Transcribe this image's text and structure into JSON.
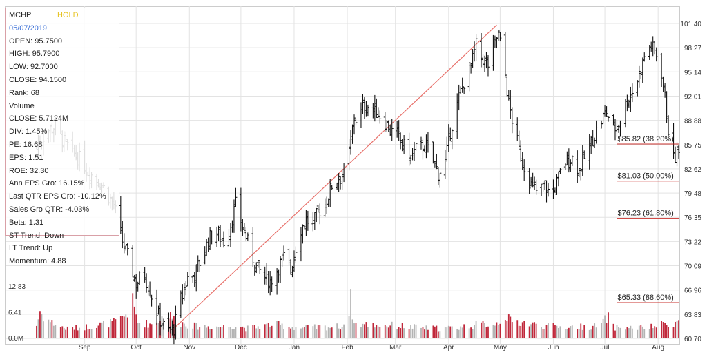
{
  "info": {
    "ticker": "MCHP",
    "rating": "HOLD",
    "date": "05/07/2019",
    "lines": [
      "OPEN: 95.7500",
      "HIGH: 95.7900",
      "LOW: 92.7000",
      "CLOSE: 94.1500",
      "Rank: 68",
      "Volume",
      "CLOSE: 5.7124M",
      "DIV: 1.45%",
      "PE: 16.68",
      "EPS: 1.51",
      "ROE: 32.30",
      "Ann EPS Gro: 16.15%",
      "Last QTR EPS Gro: -10.12%",
      "Sales Gro QTR: -4.03%",
      "Beta: 1.31",
      "ST Trend: Down",
      "LT Trend: Up",
      "Momentum: 4.88"
    ]
  },
  "chart_data": {
    "type": "ohlc",
    "x_tick_labels": [
      "Sep",
      "Oct",
      "Nov",
      "Dec",
      "Jan",
      "Feb",
      "Mar",
      "Apr",
      "May",
      "Jun",
      "Jul",
      "Aug"
    ],
    "x_tick_days": [
      0,
      30,
      61,
      91,
      122,
      153,
      181,
      212,
      242,
      273,
      303,
      334
    ],
    "y_tick_labels": [
      "101.40",
      "98.27",
      "95.14",
      "92.01",
      "88.88",
      "85.75",
      "82.62",
      "79.48",
      "76.35",
      "73.22",
      "70.09",
      "66.96",
      "63.83",
      "60.70"
    ],
    "ylim": [
      60.7,
      101.4
    ],
    "volume_tick_labels": [
      "12.83",
      "6.41",
      "0.0M"
    ],
    "volume_ylim": [
      0,
      20
    ],
    "colors": {
      "bar": "#111111",
      "trendline": "#e8706a",
      "fib": "#c9302c",
      "volume_down": "#c0283b",
      "volume_up": "#b3b3b3",
      "grid": "#e3e3e3",
      "panel_border": "#d9a0a7",
      "rating": "#e6c21f",
      "date": "#3b6fd6"
    },
    "trendline": {
      "from": {
        "day": 52,
        "price": 62.0
      },
      "to": {
        "day": 240,
        "price": 101.2
      }
    },
    "fib_levels": [
      {
        "label": "$85.82 (38.20%)",
        "value": 85.82
      },
      {
        "label": "$81.03 (50.00%)",
        "value": 81.03
      },
      {
        "label": "$76.23 (61.80%)",
        "value": 76.23
      },
      {
        "label": "$65.33 (88.60%)",
        "value": 65.33
      }
    ],
    "fib_start_day": 310,
    "fib_end_day": 349,
    "price_anchors": [
      [
        -28,
        85.5
      ],
      [
        -22,
        87.5
      ],
      [
        -17,
        88.2
      ],
      [
        -12,
        86.0
      ],
      [
        -6,
        84.5
      ],
      [
        -1,
        83.5
      ],
      [
        1,
        82.5
      ],
      [
        10,
        80.5
      ],
      [
        17,
        78.0
      ],
      [
        22,
        73.2
      ],
      [
        27,
        70.1
      ],
      [
        30,
        67.5
      ],
      [
        34,
        69.5
      ],
      [
        38,
        66.9
      ],
      [
        43,
        63.5
      ],
      [
        48,
        61.5
      ],
      [
        52,
        62.0
      ],
      [
        56,
        65.8
      ],
      [
        60,
        68.5
      ],
      [
        64,
        69.0
      ],
      [
        68,
        71.0
      ],
      [
        72,
        73.5
      ],
      [
        76,
        74.5
      ],
      [
        82,
        73.0
      ],
      [
        88,
        78.0
      ],
      [
        93,
        74.5
      ],
      [
        98,
        71.0
      ],
      [
        103,
        69.0
      ],
      [
        108,
        68.0
      ],
      [
        113,
        70.0
      ],
      [
        117,
        71.5
      ],
      [
        120,
        69.5
      ],
      [
        125,
        74.5
      ],
      [
        129,
        76.0
      ],
      [
        133,
        75.5
      ],
      [
        136,
        77.0
      ],
      [
        140,
        78.0
      ],
      [
        144,
        80.5
      ],
      [
        148,
        81.5
      ],
      [
        152,
        82.5
      ],
      [
        155,
        86.0
      ],
      [
        157,
        89.5
      ],
      [
        159,
        88.5
      ],
      [
        162,
        90.5
      ],
      [
        166,
        90.8
      ],
      [
        170,
        90.0
      ],
      [
        174,
        89.0
      ],
      [
        178,
        87.5
      ],
      [
        182,
        87.0
      ],
      [
        186,
        85.5
      ],
      [
        190,
        84.0
      ],
      [
        194,
        85.5
      ],
      [
        198,
        85.5
      ],
      [
        202,
        84.5
      ],
      [
        206,
        82.0
      ],
      [
        210,
        83.5
      ],
      [
        213,
        87.5
      ],
      [
        216,
        90.0
      ],
      [
        219,
        92.5
      ],
      [
        222,
        94.5
      ],
      [
        225,
        96.0
      ],
      [
        228,
        98.5
      ],
      [
        231,
        97.0
      ],
      [
        235,
        96.0
      ],
      [
        238,
        98.5
      ],
      [
        241,
        100.0
      ],
      [
        244,
        96.5
      ],
      [
        247,
        91.0
      ],
      [
        250,
        88.0
      ],
      [
        253,
        85.0
      ],
      [
        256,
        83.0
      ],
      [
        260,
        80.5
      ],
      [
        264,
        79.5
      ],
      [
        268,
        80.5
      ],
      [
        272,
        79.0
      ],
      [
        276,
        81.5
      ],
      [
        280,
        83.5
      ],
      [
        284,
        84.0
      ],
      [
        288,
        82.5
      ],
      [
        292,
        84.5
      ],
      [
        296,
        86.5
      ],
      [
        300,
        88.5
      ],
      [
        304,
        90.0
      ],
      [
        308,
        87.5
      ],
      [
        312,
        89.0
      ],
      [
        316,
        91.5
      ],
      [
        320,
        93.0
      ],
      [
        324,
        95.5
      ],
      [
        327,
        98.0
      ],
      [
        330,
        98.5
      ],
      [
        334,
        97.0
      ],
      [
        337,
        93.5
      ],
      [
        339,
        90.0
      ],
      [
        341,
        85.5
      ],
      [
        343,
        83.8
      ],
      [
        345,
        84.5
      ]
    ],
    "volume_anchors": [
      [
        -30,
        19.5
      ],
      [
        -28,
        3.2
      ],
      [
        -26,
        6.8
      ],
      [
        -24,
        5.5
      ],
      [
        -20,
        4.2
      ],
      [
        -15,
        3.0
      ],
      [
        -10,
        2.4
      ],
      [
        0,
        2.8
      ],
      [
        20,
        4.2
      ],
      [
        25,
        6.5
      ],
      [
        28,
        8.8
      ],
      [
        31,
        4.0
      ],
      [
        40,
        3.5
      ],
      [
        44,
        5.0
      ],
      [
        50,
        5.5
      ],
      [
        55,
        4.0
      ],
      [
        65,
        3.0
      ],
      [
        80,
        2.9
      ],
      [
        88,
        3.2
      ],
      [
        95,
        2.5
      ],
      [
        110,
        3.5
      ],
      [
        125,
        2.6
      ],
      [
        140,
        2.8
      ],
      [
        150,
        3.0
      ],
      [
        153,
        5.0
      ],
      [
        155,
        9.6
      ],
      [
        157,
        3.6
      ],
      [
        165,
        3.4
      ],
      [
        180,
        3.2
      ],
      [
        200,
        2.5
      ],
      [
        215,
        2.6
      ],
      [
        225,
        3.2
      ],
      [
        240,
        3.8
      ],
      [
        245,
        5.8
      ],
      [
        248,
        4.2
      ],
      [
        255,
        4.0
      ],
      [
        265,
        3.2
      ],
      [
        280,
        2.8
      ],
      [
        300,
        3.0
      ],
      [
        305,
        5.5
      ],
      [
        308,
        2.8
      ],
      [
        320,
        2.6
      ],
      [
        330,
        2.8
      ],
      [
        338,
        3.6
      ],
      [
        342,
        3.9
      ],
      [
        346,
        4.2
      ]
    ]
  }
}
